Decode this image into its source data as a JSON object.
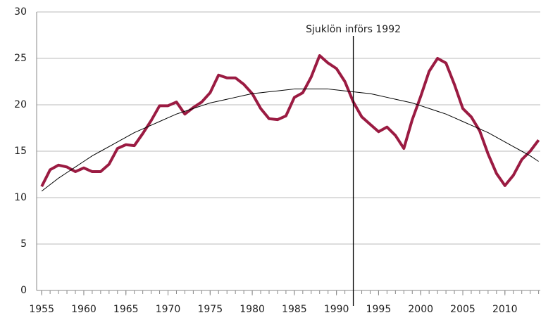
{
  "chart_data": {
    "type": "line",
    "x": [
      1955,
      1956,
      1957,
      1958,
      1959,
      1960,
      1961,
      1962,
      1963,
      1964,
      1965,
      1966,
      1967,
      1968,
      1969,
      1970,
      1971,
      1972,
      1973,
      1974,
      1975,
      1976,
      1977,
      1978,
      1979,
      1980,
      1981,
      1982,
      1983,
      1984,
      1985,
      1986,
      1987,
      1988,
      1989,
      1990,
      1991,
      1992,
      1993,
      1994,
      1995,
      1996,
      1997,
      1998,
      1999,
      2000,
      2001,
      2002,
      2003,
      2004,
      2005,
      2006,
      2007,
      2008,
      2009,
      2010,
      2011,
      2012,
      2013,
      2014
    ],
    "series": [
      {
        "color": "#9b1b42",
        "width": 4,
        "values": [
          11.2,
          13.0,
          13.5,
          13.3,
          12.8,
          13.2,
          12.8,
          12.8,
          13.6,
          15.3,
          15.7,
          15.6,
          16.9,
          18.3,
          19.9,
          19.9,
          20.3,
          19.0,
          19.7,
          20.3,
          21.3,
          23.2,
          22.9,
          22.9,
          22.2,
          21.2,
          19.6,
          18.5,
          18.4,
          18.8,
          20.8,
          21.3,
          23.0,
          25.3,
          24.5,
          23.9,
          22.5,
          20.3,
          18.7,
          17.9,
          17.1,
          17.6,
          16.7,
          15.3,
          18.4,
          20.9,
          23.6,
          25.0,
          24.5,
          22.2,
          19.6,
          18.7,
          17.2,
          14.7,
          12.6,
          11.3,
          12.4,
          14.1,
          15.0,
          16.2
        ]
      },
      {
        "color": "#000000",
        "width": 1,
        "values": [
          10.7,
          11.4,
          12.1,
          12.7,
          13.3,
          13.9,
          14.5,
          15.0,
          15.5,
          16.0,
          16.5,
          17.0,
          17.4,
          17.8,
          18.2,
          18.6,
          19.0,
          19.3,
          19.6,
          19.9,
          20.2,
          20.4,
          20.6,
          20.8,
          21.0,
          21.2,
          21.3,
          21.4,
          21.5,
          21.6,
          21.7,
          21.7,
          21.7,
          21.7,
          21.7,
          21.6,
          21.5,
          21.4,
          21.3,
          21.2,
          21.0,
          20.8,
          20.6,
          20.4,
          20.2,
          19.9,
          19.6,
          19.3,
          19.0,
          18.6,
          18.2,
          17.8,
          17.4,
          17.0,
          16.5,
          16.0,
          15.5,
          15.0,
          14.5,
          13.9
        ]
      }
    ],
    "xlim": [
      1954.4,
      2014.2
    ],
    "xticks": [
      1955,
      1960,
      1965,
      1970,
      1975,
      1980,
      1985,
      1990,
      1995,
      2000,
      2005,
      2010
    ],
    "ylim": [
      0,
      30
    ],
    "yticks": [
      0,
      5,
      10,
      15,
      20,
      25,
      30
    ],
    "grid": true,
    "annotations": [
      {
        "text": "Sjuklön införs 1992",
        "x": 1992
      }
    ]
  }
}
